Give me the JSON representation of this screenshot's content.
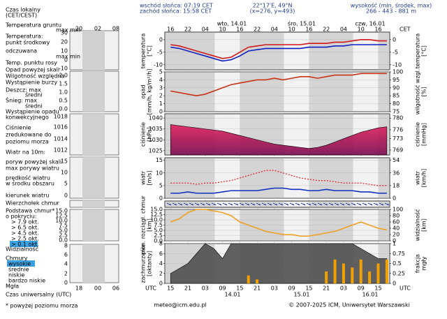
{
  "header": {
    "sunrise": "wschód słońca: 07:19 CET",
    "sunset": "zachód słońca: 15:58 CET",
    "coords": "22°17'E, 49°N",
    "grid": "(x=276, y=493)",
    "height_title": "wysokość (min, środek, max)",
    "height_values": "266 - 443 - 881 m"
  },
  "time_axis": {
    "xlim": [
      13,
      91
    ],
    "cet_label": "CET",
    "utc_label": "UTC",
    "cet_ticks": [
      {
        "value": 15,
        "label": "16"
      },
      {
        "value": 21,
        "label": "22"
      },
      {
        "value": 27,
        "label": "04"
      },
      {
        "value": 33,
        "label": "10"
      },
      {
        "value": 39,
        "label": "16"
      },
      {
        "value": 45,
        "label": "22"
      },
      {
        "value": 51,
        "label": "04"
      },
      {
        "value": 57,
        "label": "10"
      },
      {
        "value": 63,
        "label": "16"
      },
      {
        "value": 69,
        "label": "22"
      },
      {
        "value": 75,
        "label": "04"
      },
      {
        "value": 81,
        "label": "10"
      },
      {
        "value": 87,
        "label": "16"
      }
    ],
    "utc_ticks": [
      {
        "value": 15,
        "label": "15"
      },
      {
        "value": 21,
        "label": "21"
      },
      {
        "value": 27,
        "label": "03"
      },
      {
        "value": 33,
        "label": "09"
      },
      {
        "value": 39,
        "label": "15"
      },
      {
        "value": 45,
        "label": "21"
      },
      {
        "value": 51,
        "label": "03"
      },
      {
        "value": 57,
        "label": "09"
      },
      {
        "value": 63,
        "label": "15"
      },
      {
        "value": 69,
        "label": "21"
      },
      {
        "value": 75,
        "label": "03"
      },
      {
        "value": 81,
        "label": "09"
      },
      {
        "value": 87,
        "label": "15"
      }
    ],
    "cet_dates": [
      "wto, 14.01",
      "śro, 15.01",
      "czw, 16.01"
    ],
    "utc_dates": [
      "14.01",
      "15.01",
      "16.01"
    ]
  },
  "legend": {
    "local_time": [
      "Czas lokalny",
      "(CET/CEST)"
    ],
    "local_ticks": [
      "20",
      "02",
      "08"
    ],
    "temperature": [
      "Temperatura gruntu",
      "max min",
      "Temperatura:",
      "punkt środkowy",
      "odczuwana",
      "max min",
      "Temp. punktu rosy"
    ],
    "temperature_ticks": [
      "30",
      "20",
      "10",
      "0",
      "-10"
    ],
    "precipitation": [
      "Opad powyżej skali",
      "Wilgotność względna",
      "Wystąpienie burzy",
      "Deszcz: max",
      "średni",
      "Śnieg:    max",
      "średni",
      "Wystąpienie opadu",
      "konwekcyjnego"
    ],
    "precipitation_ticks": [
      "2.0",
      "1.5",
      "1.0",
      "0.5",
      "0.0"
    ],
    "pressure": [
      "Ciśnienie",
      "zredukowane do",
      "poziomu morza"
    ],
    "pressure_ticks": [
      "1018",
      "1016",
      "1014",
      "1012"
    ],
    "wind": [
      "Wiatr na 10m:",
      "poryw powyżej skali",
      "max porywy wiatru",
      "prędkość wiatru",
      "w środku obszaru"
    ],
    "wind_ticks": [
      "15",
      "10",
      "5",
      "0"
    ],
    "wind_direction": "kierunek wiatru",
    "clouds": [
      "Wierzchołek chmur",
      "Podstawa chmur*",
      "o pokryciu:",
      "> 7.9 okt.",
      "> 6.5 okt.",
      "> 4.5 okt.",
      "> 2.5 okt.",
      "> 0.1 okt.",
      "Widzialność"
    ],
    "clouds_ticks": [
      "15.0",
      "12.5",
      "10.0",
      "7.5",
      "5.0",
      "2.5",
      "0.0"
    ],
    "cloudiness": [
      "Chmury",
      "wysokie",
      "średnie",
      "niskie",
      "bardzo niskie",
      "Mgła"
    ],
    "cloudiness_ticks": [
      "8",
      "6",
      "4",
      "2",
      "0"
    ],
    "utc_time": "Czas uniwersalny (UTC)",
    "utc_ticks": [
      "18",
      "00",
      "06"
    ],
    "note": "* powyżej poziomu morza"
  },
  "footer": {
    "email": "meteo@icm.edu.pl",
    "copyright": "© 2007-2025 ICM, Uniwersytet Warszawski"
  },
  "chart_data": [
    {
      "type": "line",
      "ylabel": [
        "temperatura",
        "[°C]"
      ],
      "y2label": [
        "temperatura",
        "[°C]"
      ],
      "x": [
        15,
        18,
        21,
        24,
        27,
        30,
        33,
        36,
        39,
        42,
        45,
        48,
        51,
        54,
        57,
        60,
        63,
        66,
        69,
        72,
        75,
        78,
        81,
        84,
        87,
        90
      ],
      "ylim": [
        -12,
        3
      ],
      "yticks": [
        -10,
        -5,
        0
      ],
      "y2lim": [
        -12,
        3
      ],
      "y2ticks": [
        -10,
        -5,
        0
      ],
      "series": [
        {
          "color": "#d01818",
          "values": [
            -2,
            -2.5,
            -3.5,
            -4.5,
            -5.5,
            -6.5,
            -7.5,
            -7,
            -5,
            -3,
            -2.5,
            -2,
            -2,
            -2,
            -2,
            -2,
            -1.5,
            -1.5,
            -1.5,
            -1,
            -1,
            -0.5,
            0,
            0,
            -0.5,
            -0.5
          ]
        },
        {
          "color": "#1020c0",
          "values": [
            -3,
            -3.5,
            -4.5,
            -5.5,
            -6.5,
            -7.5,
            -8.5,
            -8,
            -6.5,
            -4.5,
            -4,
            -3.5,
            -3.5,
            -3.5,
            -3.5,
            -3.5,
            -3,
            -3,
            -3,
            -2.5,
            -2.5,
            -2,
            -2,
            -2,
            -2,
            -2
          ]
        }
      ]
    },
    {
      "type": "line",
      "ylabel": [
        "opad",
        "[mm/h, kg/m²/h]"
      ],
      "y2label": [
        "wilgotność wzgl.",
        "[%]"
      ],
      "x": [
        15,
        18,
        21,
        24,
        27,
        30,
        33,
        36,
        39,
        42,
        45,
        48,
        51,
        54,
        57,
        60,
        63,
        66,
        69,
        72,
        75,
        78,
        81,
        84,
        87,
        90
      ],
      "ylim": [
        0,
        5
      ],
      "yticks": [
        0,
        1,
        2,
        3,
        4,
        5
      ],
      "y2lim": [
        75,
        100
      ],
      "y2ticks": [
        75,
        80,
        85,
        90,
        95,
        100
      ],
      "series": [
        {
          "color": "#c83214",
          "axis": "y2",
          "values": [
            88,
            87,
            86,
            85,
            86,
            88,
            90,
            92,
            93,
            94,
            95,
            95,
            96,
            95,
            96,
            97,
            97,
            96,
            97,
            98,
            98,
            98,
            99,
            99,
            99,
            99
          ]
        }
      ]
    },
    {
      "type": "area",
      "ylabel": [
        "ciśnienie",
        "[hPa]"
      ],
      "y2label": [
        "ciśnienie",
        "[mmHg]"
      ],
      "x": [
        15,
        18,
        21,
        24,
        27,
        30,
        33,
        36,
        39,
        42,
        45,
        48,
        51,
        54,
        57,
        60,
        63,
        66,
        69,
        72,
        75,
        78,
        81,
        84,
        87,
        90
      ],
      "ylim": [
        1023,
        1042
      ],
      "yticks": [
        1025,
        1030,
        1035,
        1040
      ],
      "y2lim": [
        767.3,
        781.5
      ],
      "y2ticks": [
        769,
        773,
        776,
        780
      ],
      "series": [
        {
          "color": "#c0146e",
          "values": [
            1037,
            1036.5,
            1036,
            1035.5,
            1035,
            1034.5,
            1034,
            1033,
            1032,
            1031,
            1030,
            1029,
            1028,
            1027.5,
            1027,
            1026.5,
            1026,
            1026.5,
            1027.5,
            1029,
            1030.5,
            1032,
            1033.5,
            1034.5,
            1035.5,
            1036
          ]
        }
      ]
    },
    {
      "type": "line",
      "ylabel": [
        "wiatr",
        "[m/s]"
      ],
      "y2label": [
        "wiatr",
        "[km/h]"
      ],
      "x": [
        15,
        18,
        21,
        24,
        27,
        30,
        33,
        36,
        39,
        42,
        45,
        48,
        51,
        54,
        57,
        60,
        63,
        66,
        69,
        72,
        75,
        78,
        81,
        84,
        87,
        90
      ],
      "ylim": [
        0,
        16
      ],
      "yticks": [
        0,
        5,
        10,
        15
      ],
      "y2lim": [
        0,
        57.6
      ],
      "y2ticks": [
        0,
        18,
        36,
        54
      ],
      "series": [
        {
          "color": "#1030c0",
          "values": [
            2,
            2,
            2.5,
            2,
            2,
            2,
            2.5,
            3,
            3,
            3,
            3,
            3.5,
            4,
            4,
            3.5,
            3.5,
            3,
            3,
            3.5,
            3,
            3,
            3,
            2.5,
            2.5,
            2,
            2
          ]
        },
        {
          "color": "#e02020",
          "style": "dashed",
          "values": [
            6,
            6,
            6,
            5.5,
            6,
            6,
            6.5,
            7,
            8,
            9,
            10,
            11,
            11,
            10,
            9,
            8,
            7.5,
            7,
            7,
            6.5,
            6,
            6,
            6,
            5.5,
            5,
            5
          ]
        }
      ]
    },
    {
      "type": "line",
      "ylabel": [
        "pion. rozciągł. chmur",
        "[km]"
      ],
      "y2label": [
        "widzialność",
        "[km]"
      ],
      "x": [
        15,
        18,
        21,
        24,
        27,
        30,
        33,
        36,
        39,
        42,
        45,
        48,
        51,
        54,
        57,
        60,
        63,
        66,
        69,
        72,
        75,
        78,
        81,
        84,
        87,
        90
      ],
      "ylim": [
        0,
        15
      ],
      "yticks": [
        {
          "value": 0,
          "label": "0.0"
        },
        2.5,
        {
          "value": 5,
          "label": "5.0"
        },
        7.5,
        {
          "value": 10,
          "label": "10.0"
        },
        12.5,
        {
          "value": 15,
          "label": "15.0"
        }
      ],
      "y2lim": [
        0,
        100
      ],
      "y2ticks": [
        0,
        20,
        40,
        60,
        80,
        100
      ],
      "series": [
        {
          "color": "#f0a020",
          "axis": "y2",
          "values": [
            60,
            70,
            90,
            100,
            100,
            95,
            90,
            80,
            60,
            50,
            40,
            30,
            25,
            20,
            20,
            15,
            15,
            20,
            25,
            30,
            40,
            50,
            60,
            50,
            40,
            35
          ]
        }
      ]
    },
    {
      "type": "area",
      "ylabel": [
        "zachmurzenie",
        "[oktanty]"
      ],
      "y2label": [
        "frakcja",
        "mgły"
      ],
      "x": [
        15,
        18,
        21,
        24,
        27,
        30,
        33,
        36,
        39,
        42,
        45,
        48,
        51,
        54,
        57,
        60,
        63,
        66,
        69,
        72,
        75,
        78,
        81,
        84,
        87,
        90
      ],
      "ylim": [
        0,
        8
      ],
      "yticks": [
        0,
        2,
        4,
        6,
        8
      ],
      "y2lim": [
        0,
        1
      ],
      "y2ticks": [
        0,
        0.25,
        0.5,
        0.75,
        1
      ],
      "series": [
        {
          "color": "#505050",
          "values": [
            2,
            3,
            4,
            6,
            8,
            7,
            5,
            8,
            8,
            8,
            8,
            8,
            8,
            8,
            8,
            8,
            8,
            8,
            8,
            8,
            8,
            8,
            7,
            6,
            5,
            5
          ]
        },
        {
          "color": "#f0a000",
          "axis": "y2",
          "type": "bar",
          "values": [
            0,
            0,
            0,
            0,
            0,
            0,
            0,
            0,
            0,
            0.2,
            0.1,
            0,
            0,
            0,
            0,
            0,
            0,
            0,
            0.3,
            0.6,
            0.5,
            0.4,
            0.6,
            0.3,
            0.5,
            0.6
          ]
        }
      ]
    }
  ]
}
